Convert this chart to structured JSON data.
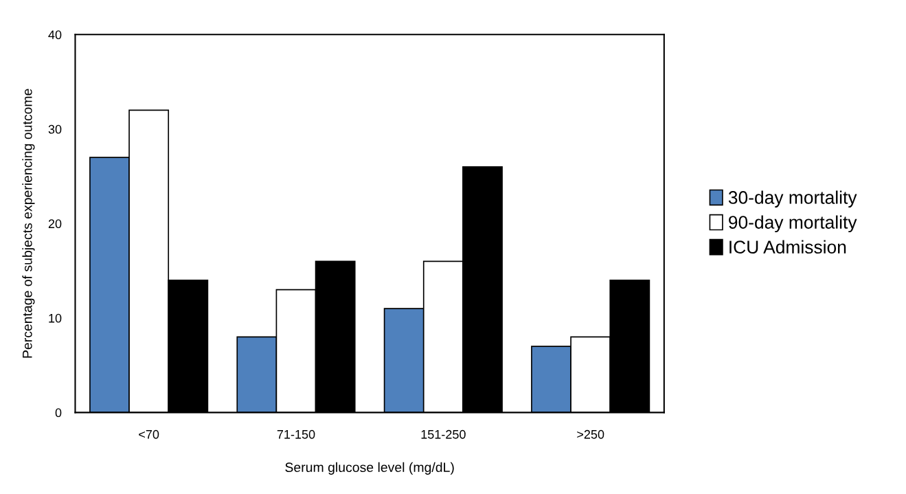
{
  "chart_data": {
    "type": "bar",
    "xlabel": "Serum glucose level (mg/dL)",
    "ylabel": "Percentage of subjects experiencing outcome",
    "categories": [
      "<70",
      "71-150",
      "151-250",
      ">250"
    ],
    "series": [
      {
        "name": "30-day mortality",
        "color": "#4f81bd",
        "values": [
          27,
          8,
          11,
          7
        ]
      },
      {
        "name": "90-day mortality",
        "color": "#ffffff",
        "values": [
          32,
          13,
          16,
          8
        ]
      },
      {
        "name": "ICU Admission",
        "color": "#000000",
        "values": [
          14,
          16,
          26,
          14
        ]
      }
    ],
    "ylim": [
      0,
      40
    ],
    "yticks": [
      0,
      10,
      20,
      30,
      40
    ],
    "grid": false,
    "legend": "right"
  }
}
